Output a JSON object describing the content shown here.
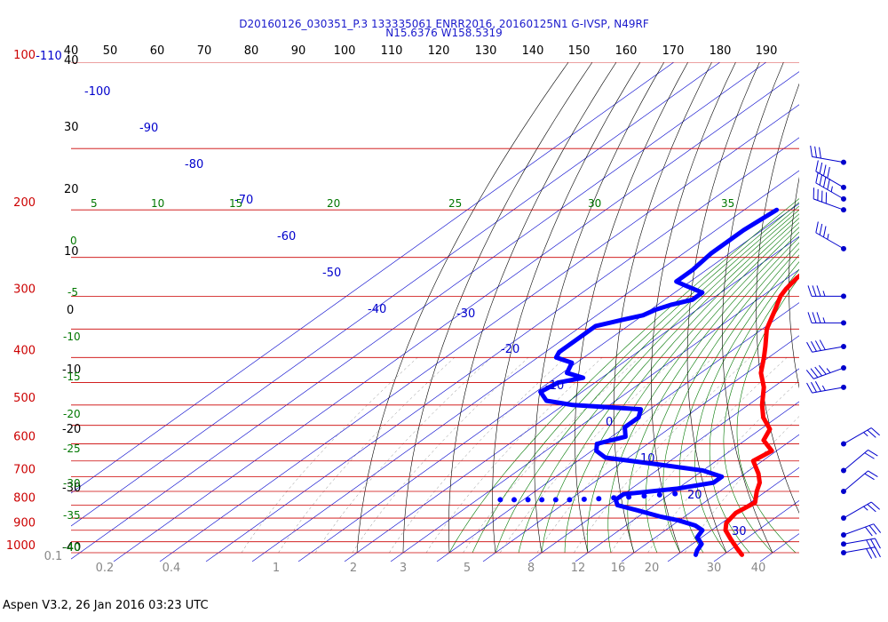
{
  "header": {
    "line1": "D20160126_030351_P.3 133335061 ENRR2016, 20160125N1 G-IVSP, N49RF",
    "line2": "N15.6376 W158.5319"
  },
  "footer": {
    "text": "Aspen V3.2, 26 Jan 2016  03:23 UTC"
  },
  "colors": {
    "isobar": "#cc0000",
    "isotherm": "#0000cc",
    "dry_adiabat": "#000000",
    "moist_adiabat": "#007700",
    "mixing_ratio": "#888888",
    "temperature": "#ff0000",
    "dewpoint": "#0000ff",
    "wind": "#0000cc"
  },
  "chart_data": {
    "type": "skew-t",
    "pressure_axis": {
      "unit": "hPa",
      "scale": "log",
      "range": [
        100,
        1000
      ],
      "labels": [
        {
          "value": 100,
          "text": "100"
        },
        {
          "value": 200,
          "text": "200"
        },
        {
          "value": 300,
          "text": "300"
        },
        {
          "value": 400,
          "text": "400"
        },
        {
          "value": 500,
          "text": "500"
        },
        {
          "value": 600,
          "text": "600"
        },
        {
          "value": 700,
          "text": "700"
        },
        {
          "value": 800,
          "text": "800"
        },
        {
          "value": 900,
          "text": "900"
        },
        {
          "value": 1000,
          "text": "1000"
        }
      ]
    },
    "top_scale_labels": [
      "-110",
      "40",
      "50",
      "60",
      "70",
      "80",
      "90",
      "100",
      "110",
      "120",
      "130",
      "140",
      "150",
      "160",
      "170",
      "180",
      "190"
    ],
    "dry_adiabat_labels": [
      {
        "theta": 40,
        "text": "40"
      },
      {
        "theta": 30,
        "text": "30"
      },
      {
        "theta": 20,
        "text": "20"
      },
      {
        "theta": 10,
        "text": "10"
      },
      {
        "theta": 0,
        "text": "0"
      },
      {
        "theta": -10,
        "text": "-10"
      },
      {
        "theta": -20,
        "text": "-20"
      },
      {
        "theta": -30,
        "text": "-30"
      },
      {
        "theta": -40,
        "text": "-40"
      }
    ],
    "isotherm_labels": [
      {
        "t": -100,
        "text": "-100"
      },
      {
        "t": -90,
        "text": "-90"
      },
      {
        "t": -80,
        "text": "-80"
      },
      {
        "t": -70,
        "text": "-70"
      },
      {
        "t": -60,
        "text": "-60"
      },
      {
        "t": -50,
        "text": "-50"
      },
      {
        "t": -40,
        "text": "-40"
      },
      {
        "t": -30,
        "text": "-30"
      },
      {
        "t": -20,
        "text": "-20"
      },
      {
        "t": -10,
        "text": "-10"
      },
      {
        "t": 0,
        "text": "0"
      },
      {
        "t": 10,
        "text": "10"
      },
      {
        "t": 20,
        "text": "20"
      },
      {
        "t": 30,
        "text": "30"
      }
    ],
    "moist_adiabat_labels": [
      {
        "text": "5"
      },
      {
        "text": "10"
      },
      {
        "text": "15"
      },
      {
        "text": "20"
      },
      {
        "text": "25"
      },
      {
        "text": "30"
      },
      {
        "text": "35"
      },
      {
        "text": "0"
      },
      {
        "text": "-5"
      },
      {
        "text": "-10"
      },
      {
        "text": "-15"
      },
      {
        "text": "-20"
      },
      {
        "text": "-25"
      },
      {
        "text": "-30"
      },
      {
        "text": "-35"
      },
      {
        "text": "-40"
      }
    ],
    "mixing_ratio_labels": [
      "0.1",
      "0.2",
      "0.4",
      "1",
      "2",
      "3",
      "5",
      "8",
      "12",
      "16",
      "20",
      "30",
      "40"
    ],
    "series": [
      {
        "key": "temperature",
        "points": [
          {
            "p": 180,
            "t": -56
          },
          {
            "p": 190,
            "t": -56
          },
          {
            "p": 200,
            "t": -56
          },
          {
            "p": 210,
            "t": -56
          },
          {
            "p": 220,
            "t": -55
          },
          {
            "p": 235,
            "t": -53
          },
          {
            "p": 250,
            "t": -51
          },
          {
            "p": 260,
            "t": -48
          },
          {
            "p": 275,
            "t": -48
          },
          {
            "p": 290,
            "t": -47
          },
          {
            "p": 300,
            "t": -46
          },
          {
            "p": 320,
            "t": -43
          },
          {
            "p": 350,
            "t": -39
          },
          {
            "p": 380,
            "t": -34
          },
          {
            "p": 400,
            "t": -31
          },
          {
            "p": 430,
            "t": -27
          },
          {
            "p": 460,
            "t": -22
          },
          {
            "p": 500,
            "t": -17
          },
          {
            "p": 530,
            "t": -13
          },
          {
            "p": 560,
            "t": -8
          },
          {
            "p": 590,
            "t": -6
          },
          {
            "p": 620,
            "t": -1
          },
          {
            "p": 650,
            "t": -2
          },
          {
            "p": 690,
            "t": 3
          },
          {
            "p": 720,
            "t": 6
          },
          {
            "p": 750,
            "t": 8
          },
          {
            "p": 790,
            "t": 11
          },
          {
            "p": 830,
            "t": 10
          },
          {
            "p": 870,
            "t": 11
          },
          {
            "p": 900,
            "t": 13
          },
          {
            "p": 940,
            "t": 17
          },
          {
            "p": 980,
            "t": 21
          },
          {
            "p": 1010,
            "t": 24
          }
        ]
      },
      {
        "key": "dewpoint",
        "points": [
          {
            "p": 200,
            "t": -73
          },
          {
            "p": 220,
            "t": -74
          },
          {
            "p": 245,
            "t": -74
          },
          {
            "p": 265,
            "t": -73
          },
          {
            "p": 280,
            "t": -73
          },
          {
            "p": 285,
            "t": -70
          },
          {
            "p": 295,
            "t": -64
          },
          {
            "p": 305,
            "t": -64
          },
          {
            "p": 312,
            "t": -67
          },
          {
            "p": 320,
            "t": -69
          },
          {
            "p": 328,
            "t": -70
          },
          {
            "p": 335,
            "t": -73
          },
          {
            "p": 345,
            "t": -77
          },
          {
            "p": 390,
            "t": -77
          },
          {
            "p": 400,
            "t": -76
          },
          {
            "p": 410,
            "t": -71
          },
          {
            "p": 430,
            "t": -69
          },
          {
            "p": 440,
            "t": -64
          },
          {
            "p": 450,
            "t": -68
          },
          {
            "p": 470,
            "t": -69
          },
          {
            "p": 490,
            "t": -65
          },
          {
            "p": 500,
            "t": -58
          },
          {
            "p": 510,
            "t": -42
          },
          {
            "p": 530,
            "t": -40
          },
          {
            "p": 555,
            "t": -40
          },
          {
            "p": 580,
            "t": -37
          },
          {
            "p": 600,
            "t": -41
          },
          {
            "p": 620,
            "t": -39
          },
          {
            "p": 640,
            "t": -35
          },
          {
            "p": 660,
            "t": -22
          },
          {
            "p": 680,
            "t": -10
          },
          {
            "p": 700,
            "t": -4
          },
          {
            "p": 720,
            "t": -4
          },
          {
            "p": 740,
            "t": -10
          },
          {
            "p": 760,
            "t": -20
          },
          {
            "p": 780,
            "t": -20
          },
          {
            "p": 800,
            "t": -18
          },
          {
            "p": 820,
            "t": -12
          },
          {
            "p": 845,
            "t": -5
          },
          {
            "p": 860,
            "t": 0
          },
          {
            "p": 880,
            "t": 5
          },
          {
            "p": 900,
            "t": 8
          },
          {
            "p": 930,
            "t": 9
          },
          {
            "p": 960,
            "t": 12
          },
          {
            "p": 990,
            "t": 13
          },
          {
            "p": 1010,
            "t": 14
          }
        ]
      },
      {
        "key": "dewpoint_dots",
        "points": [
          {
            "p": 780,
            "t": -45
          },
          {
            "p": 780,
            "t": -42
          },
          {
            "p": 780,
            "t": -39
          },
          {
            "p": 780,
            "t": -36
          },
          {
            "p": 780,
            "t": -33
          },
          {
            "p": 780,
            "t": -30
          },
          {
            "p": 778,
            "t": -27
          },
          {
            "p": 776,
            "t": -24
          },
          {
            "p": 773,
            "t": -21
          },
          {
            "p": 770,
            "t": -18
          },
          {
            "p": 766,
            "t": -15
          },
          {
            "p": 762,
            "t": -12
          },
          {
            "p": 758,
            "t": -9
          }
        ]
      },
      {
        "key": "temperature_marker",
        "points": [
          {
            "p": 160,
            "t": -63
          }
        ]
      }
    ],
    "wind_barbs": [
      {
        "p": 160,
        "dir": 280,
        "speed": 30
      },
      {
        "p": 180,
        "dir": 300,
        "speed": 40
      },
      {
        "p": 190,
        "dir": 300,
        "speed": 45
      },
      {
        "p": 200,
        "dir": 290,
        "speed": 40
      },
      {
        "p": 240,
        "dir": 300,
        "speed": 35
      },
      {
        "p": 300,
        "dir": 270,
        "speed": 35
      },
      {
        "p": 340,
        "dir": 270,
        "speed": 35
      },
      {
        "p": 380,
        "dir": 260,
        "speed": 40
      },
      {
        "p": 420,
        "dir": 250,
        "speed": 45
      },
      {
        "p": 460,
        "dir": 260,
        "speed": 35
      },
      {
        "p": 600,
        "dir": 60,
        "speed": 25
      },
      {
        "p": 680,
        "dir": 50,
        "speed": 20
      },
      {
        "p": 750,
        "dir": 50,
        "speed": 20
      },
      {
        "p": 850,
        "dir": 60,
        "speed": 25
      },
      {
        "p": 920,
        "dir": 70,
        "speed": 30
      },
      {
        "p": 960,
        "dir": 80,
        "speed": 30
      },
      {
        "p": 1000,
        "dir": 80,
        "speed": 30
      }
    ]
  }
}
